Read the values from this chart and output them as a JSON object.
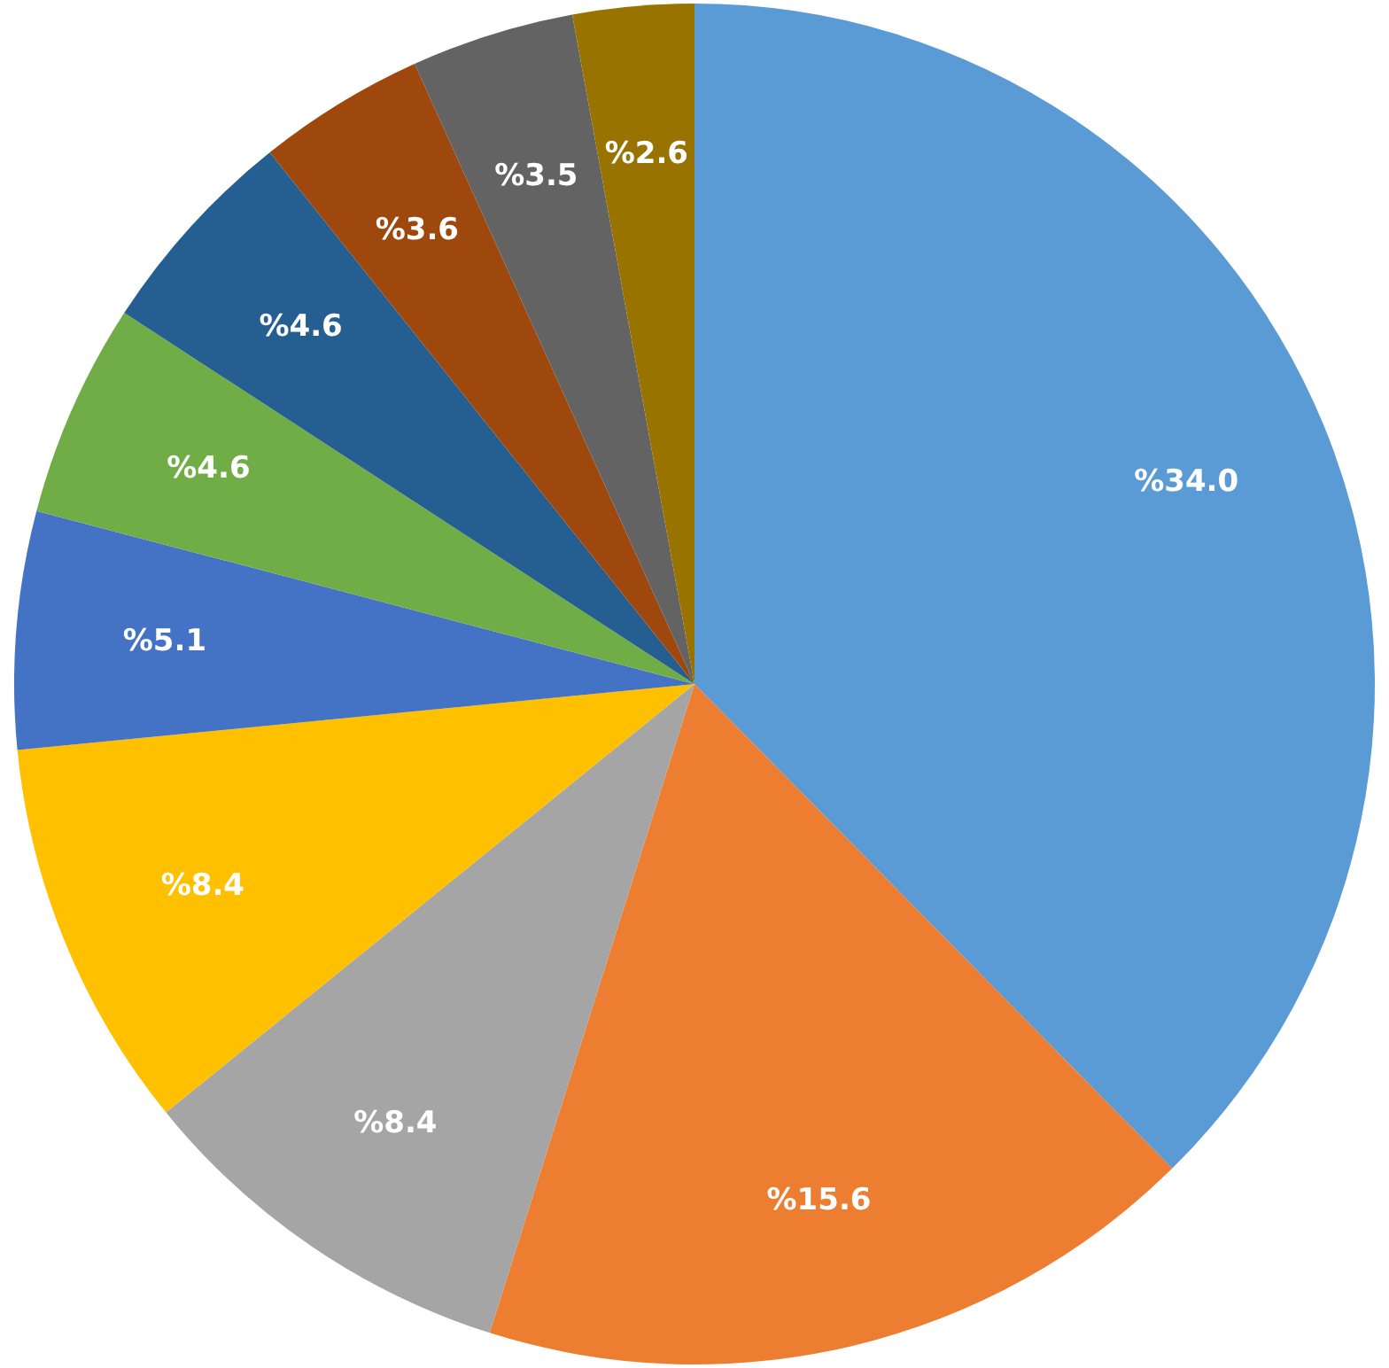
{
  "chart_data": {
    "type": "pie",
    "categories": [
      null,
      null,
      null,
      null,
      null,
      null,
      null,
      null,
      null,
      null
    ],
    "values": [
      34.0,
      15.6,
      8.4,
      8.4,
      5.1,
      4.6,
      4.6,
      3.6,
      3.5,
      2.6
    ],
    "value_labels": [
      "%34.0",
      "%15.6",
      "%8.4",
      "%8.4",
      "%5.1",
      "%4.6",
      "%4.6",
      "%3.6",
      "%3.5",
      "%2.6"
    ],
    "colors": [
      "#5b9bd5",
      "#ed7d31",
      "#a5a5a5",
      "#ffc000",
      "#4472c4",
      "#70ad47",
      "#255e91",
      "#9e480e",
      "#636363",
      "#997300"
    ],
    "legend": false
  }
}
